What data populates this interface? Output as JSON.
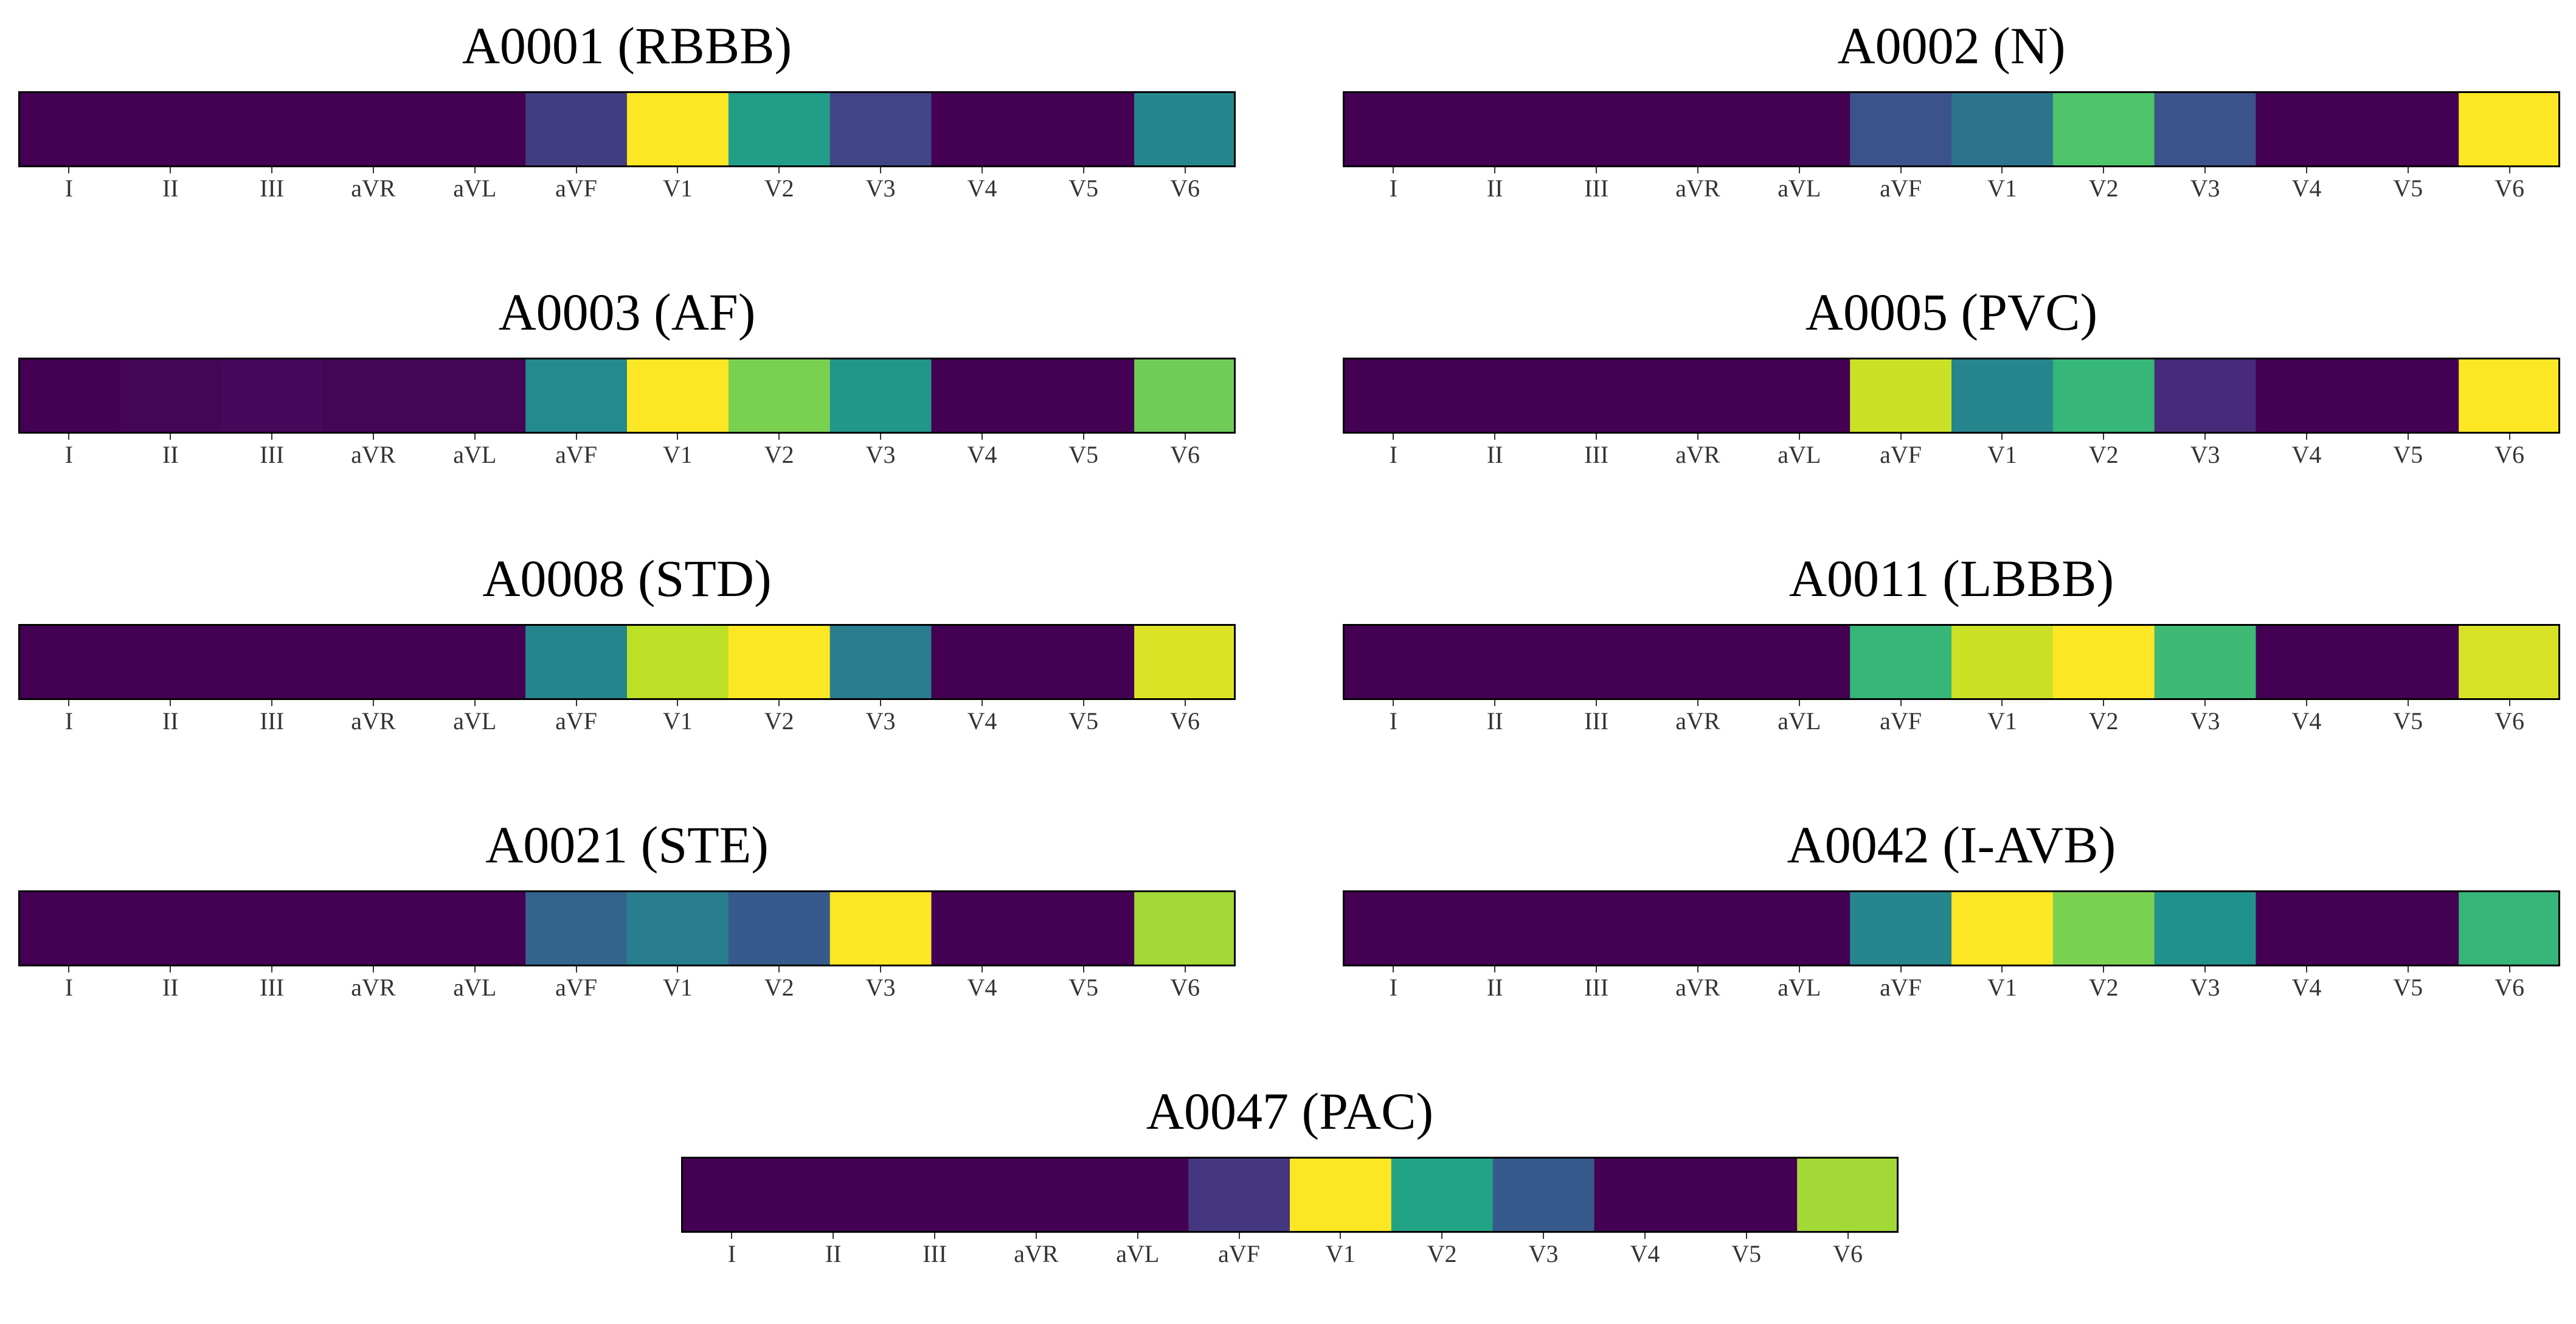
{
  "chart_data": {
    "type": "heatmap",
    "colormap": "viridis",
    "value_range": [
      0,
      1
    ],
    "leads": [
      "I",
      "II",
      "III",
      "aVR",
      "aVL",
      "aVF",
      "V1",
      "V2",
      "V3",
      "V4",
      "V5",
      "V6"
    ],
    "panels": [
      {
        "title": "A0001 (RBBB)",
        "values": [
          0,
          0,
          0,
          0,
          0,
          0.18,
          1.0,
          0.55,
          0.2,
          0,
          0,
          0.46
        ]
      },
      {
        "title": "A0002 (N)",
        "values": [
          0,
          0,
          0,
          0,
          0,
          0.25,
          0.38,
          0.72,
          0.25,
          0,
          0,
          1.0
        ]
      },
      {
        "title": "A0003 (AF)",
        "values": [
          0,
          0.01,
          0.02,
          0.01,
          0.01,
          0.47,
          1.0,
          0.8,
          0.52,
          0,
          0,
          0.78
        ]
      },
      {
        "title": "A0005 (PVC)",
        "values": [
          0,
          0,
          0,
          0,
          0,
          0.92,
          0.45,
          0.66,
          0.12,
          0,
          0,
          1.0
        ]
      },
      {
        "title": "A0008 (STD)",
        "values": [
          0,
          0,
          0,
          0,
          0,
          0.46,
          0.9,
          1.0,
          0.42,
          0,
          0,
          0.95
        ]
      },
      {
        "title": "A0011 (LBBB)",
        "values": [
          0,
          0,
          0,
          0,
          0,
          0.66,
          0.92,
          1.0,
          0.68,
          0,
          0,
          0.94
        ]
      },
      {
        "title": "A0021 (STE)",
        "values": [
          0,
          0,
          0,
          0,
          0,
          0.32,
          0.42,
          0.28,
          1.0,
          0,
          0,
          0.86
        ]
      },
      {
        "title": "A0042 (I-AVB)",
        "values": [
          0,
          0,
          0,
          0,
          0,
          0.45,
          1.0,
          0.8,
          0.5,
          0,
          0,
          0.66
        ]
      },
      {
        "title": "A0047 (PAC)",
        "values": [
          0,
          0,
          0,
          0,
          0,
          0.16,
          1.0,
          0.58,
          0.28,
          0,
          0,
          0.86
        ]
      }
    ]
  }
}
